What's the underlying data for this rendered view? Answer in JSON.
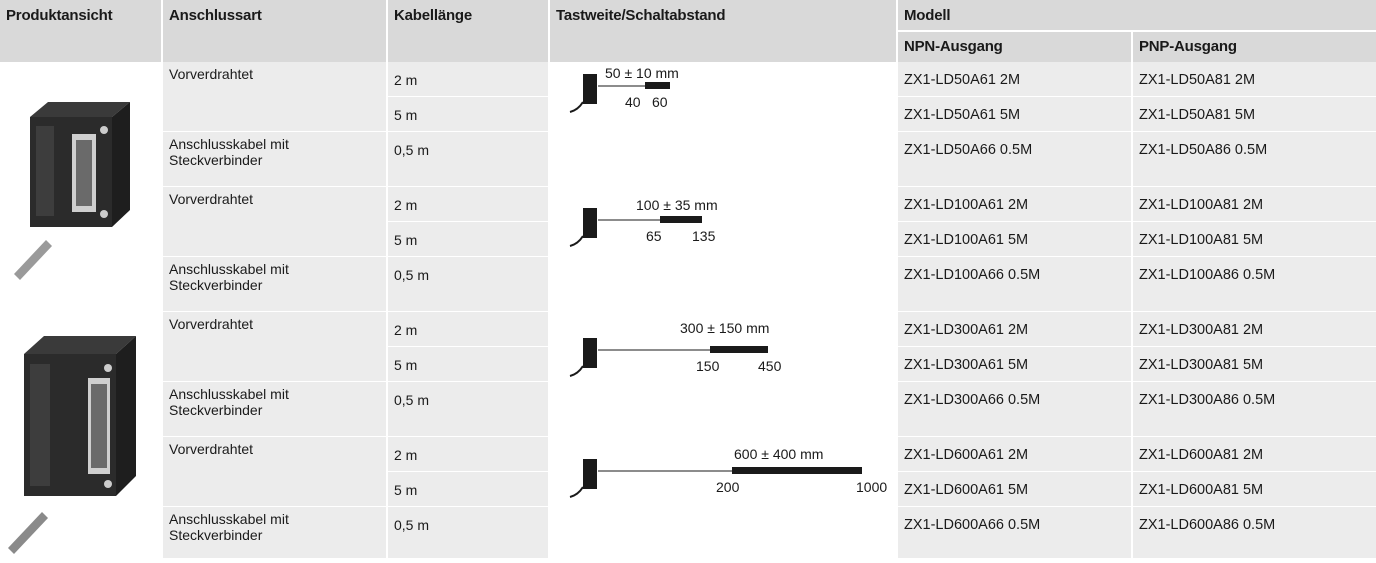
{
  "header": {
    "produktansicht": "Produktansicht",
    "anschlussart": "Anschlussart",
    "kabellaenge": "Kabellänge",
    "tastweite": "Tastweite/Schaltabstand",
    "modell": "Modell",
    "npn": "NPN-Ausgang",
    "pnp": "PNP-Ausgang"
  },
  "groups": [
    {
      "range": {
        "label": "50 ± 10 mm",
        "min": "40",
        "max": "60"
      },
      "rows": [
        {
          "anschluss": "Vorverdrahtet",
          "laenge": "2 m",
          "npn": "ZX1-LD50A61 2M",
          "pnp": "ZX1-LD50A81 2M"
        },
        {
          "anschluss": "",
          "laenge": "5 m",
          "npn": "ZX1-LD50A61 5M",
          "pnp": "ZX1-LD50A81 5M"
        },
        {
          "anschluss": "Anschlusskabel mit Steckverbinder",
          "laenge": "0,5 m",
          "npn": "ZX1-LD50A66 0.5M",
          "pnp": "ZX1-LD50A86 0.5M"
        }
      ]
    },
    {
      "range": {
        "label": "100 ± 35 mm",
        "min": "65",
        "max": "135"
      },
      "rows": [
        {
          "anschluss": "Vorverdrahtet",
          "laenge": "2 m",
          "npn": "ZX1-LD100A61 2M",
          "pnp": "ZX1-LD100A81 2M"
        },
        {
          "anschluss": "",
          "laenge": "5 m",
          "npn": "ZX1-LD100A61 5M",
          "pnp": "ZX1-LD100A81 5M"
        },
        {
          "anschluss": "Anschlusskabel mit Steckverbinder",
          "laenge": "0,5 m",
          "npn": "ZX1-LD100A66 0.5M",
          "pnp": "ZX1-LD100A86 0.5M"
        }
      ]
    },
    {
      "range": {
        "label": "300 ± 150 mm",
        "min": "150",
        "max": "450"
      },
      "rows": [
        {
          "anschluss": "Vorverdrahtet",
          "laenge": "2 m",
          "npn": "ZX1-LD300A61 2M",
          "pnp": "ZX1-LD300A81 2M"
        },
        {
          "anschluss": "",
          "laenge": "5 m",
          "npn": "ZX1-LD300A61 5M",
          "pnp": "ZX1-LD300A81 5M"
        },
        {
          "anschluss": "Anschlusskabel mit Steckverbinder",
          "laenge": "0,5 m",
          "npn": "ZX1-LD300A66 0.5M",
          "pnp": "ZX1-LD300A86 0.5M"
        }
      ]
    },
    {
      "range": {
        "label": "600 ± 400 mm",
        "min": "200",
        "max": "1000"
      },
      "rows": [
        {
          "anschluss": "Vorverdrahtet",
          "laenge": "2 m",
          "npn": "ZX1-LD600A61 2M",
          "pnp": "ZX1-LD600A81 2M"
        },
        {
          "anschluss": "",
          "laenge": "5 m",
          "npn": "ZX1-LD600A61 5M",
          "pnp": "ZX1-LD600A81 5M"
        },
        {
          "anschluss": "Anschlusskabel mit Steckverbinder",
          "laenge": "0,5 m",
          "npn": "ZX1-LD600A66 0.5M",
          "pnp": "ZX1-LD600A86 0.5M"
        }
      ]
    }
  ],
  "product_images": [
    {
      "icon": "sensor-photo-icon"
    },
    {
      "icon": "sensor-photo-icon"
    }
  ],
  "colors": {
    "header_bg": "#d9d9d9",
    "cell_bg": "#ececec",
    "range_bar": "#1a1a1a"
  }
}
